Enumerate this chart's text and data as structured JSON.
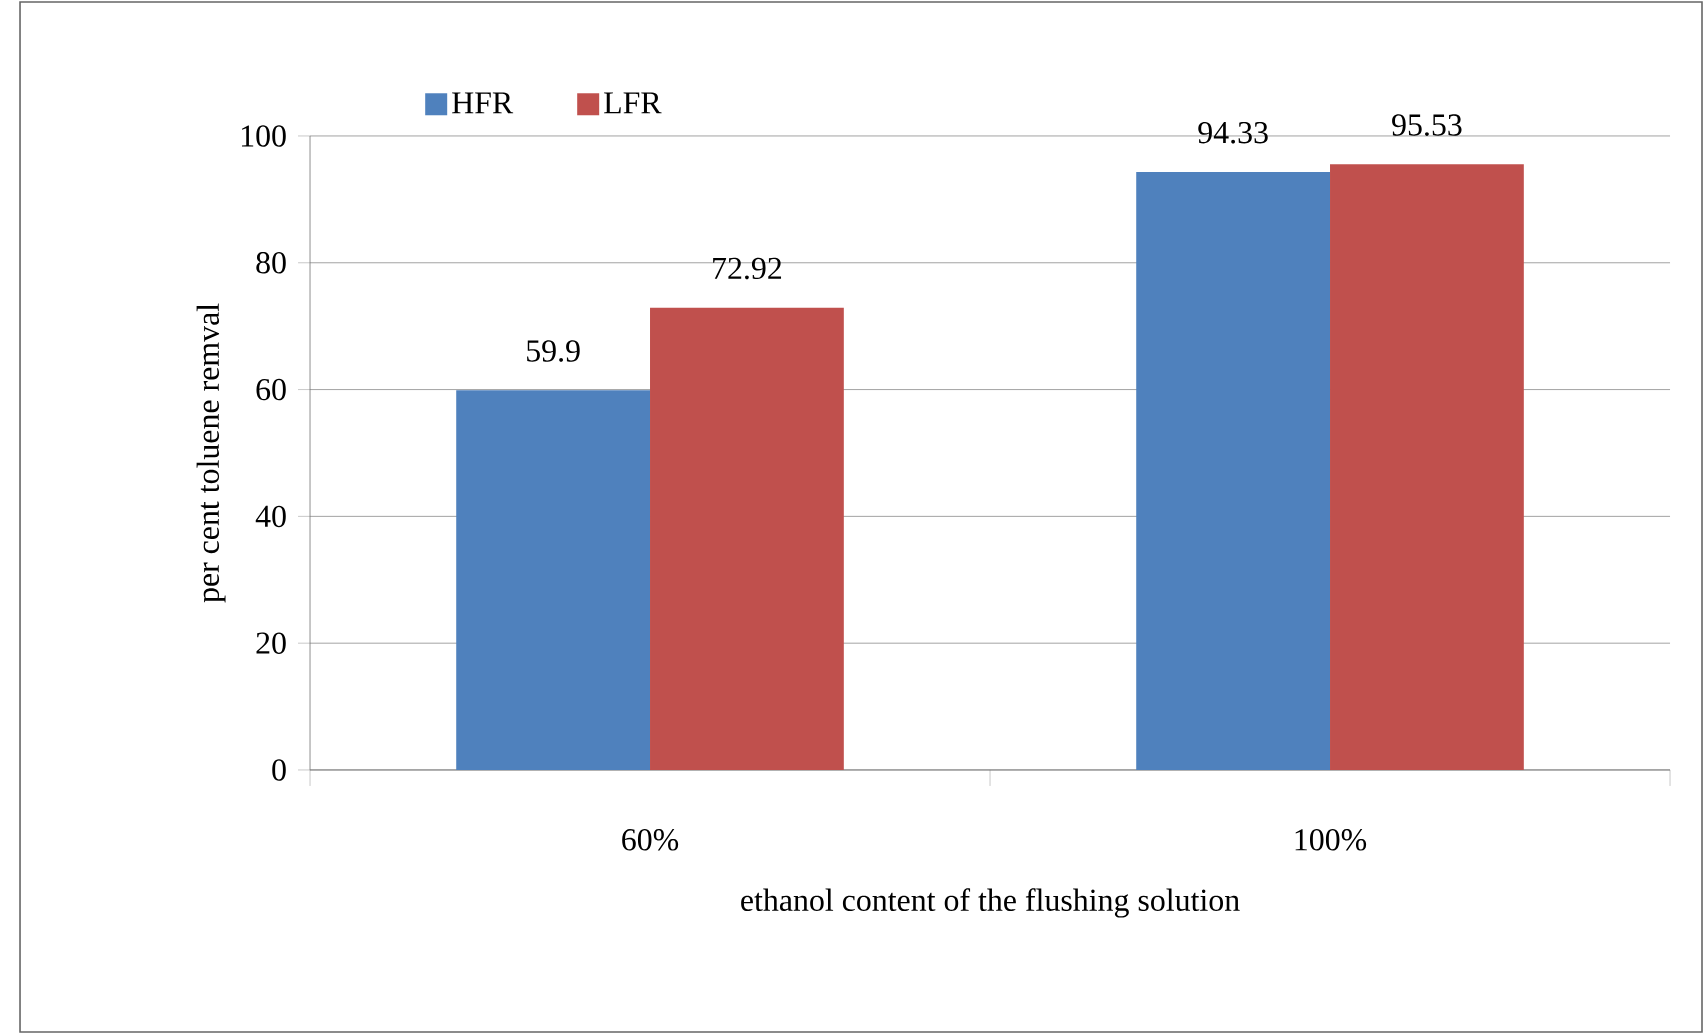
{
  "chart_data": {
    "type": "bar",
    "xlabel": "ethanol content of the flushing solution",
    "ylabel": "per cent toluene remval",
    "categories": [
      "60%",
      "100%"
    ],
    "series": [
      {
        "name": "HFR",
        "color": "#4f81bd",
        "values": [
          59.9,
          94.33
        ]
      },
      {
        "name": "LFR",
        "color": "#c0504d",
        "values": [
          72.92,
          95.53
        ]
      }
    ],
    "ylim": [
      0,
      100
    ],
    "yticks": [
      0,
      20,
      40,
      60,
      80,
      100
    ],
    "grid": "y",
    "legend": "top left",
    "data_labels": true
  }
}
